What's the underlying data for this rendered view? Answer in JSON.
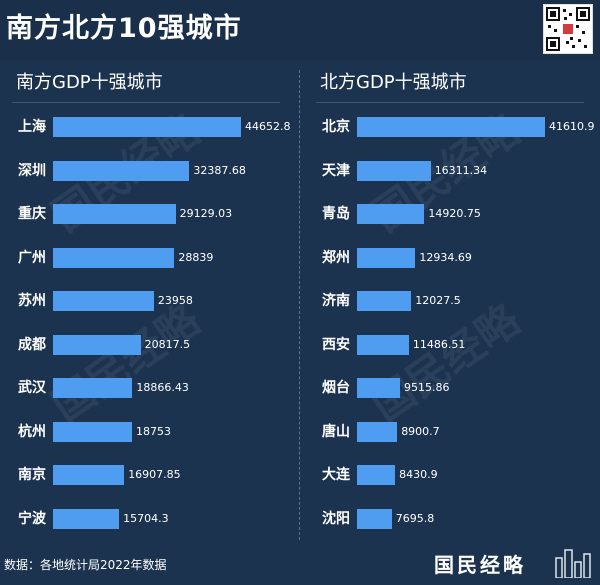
{
  "title": "南方北方10强城市",
  "footer": {
    "source": "数据：各地统计局2022年数据",
    "brand": "国民经略"
  },
  "watermark": "国民经略",
  "icons": {
    "qr": "qr-code-icon",
    "brand": "building-logo-icon"
  },
  "colors": {
    "background": "#1c3350",
    "bar": "#4f9df0"
  },
  "chart_data": [
    {
      "type": "bar",
      "orientation": "horizontal",
      "title": "南方GDP十强城市",
      "categories": [
        "上海",
        "深圳",
        "重庆",
        "广州",
        "苏州",
        "成都",
        "武汉",
        "杭州",
        "南京",
        "宁波"
      ],
      "values": [
        44652.8,
        32387.68,
        29129.03,
        28839,
        23958,
        20817.5,
        18866.43,
        18753,
        16907.85,
        15704.3
      ],
      "labels": [
        "44652.8",
        "32387.68",
        "29129.03",
        "28839",
        "23958",
        "20817.5",
        "18866.43",
        "18753",
        "16907.85",
        "15704.3"
      ]
    },
    {
      "type": "bar",
      "orientation": "horizontal",
      "title": "北方GDP十强城市",
      "categories": [
        "北京",
        "天津",
        "青岛",
        "郑州",
        "济南",
        "西安",
        "烟台",
        "唐山",
        "大连",
        "沈阳"
      ],
      "values": [
        41610.9,
        16311.34,
        14920.75,
        12934.69,
        12027.5,
        11486.51,
        9515.86,
        8900.7,
        8430.9,
        7695.8
      ],
      "labels": [
        "41610.9",
        "16311.34",
        "14920.75",
        "12934.69",
        "12027.5",
        "11486.51",
        "9515.86",
        "8900.7",
        "8430.9",
        "7695.8"
      ]
    }
  ]
}
